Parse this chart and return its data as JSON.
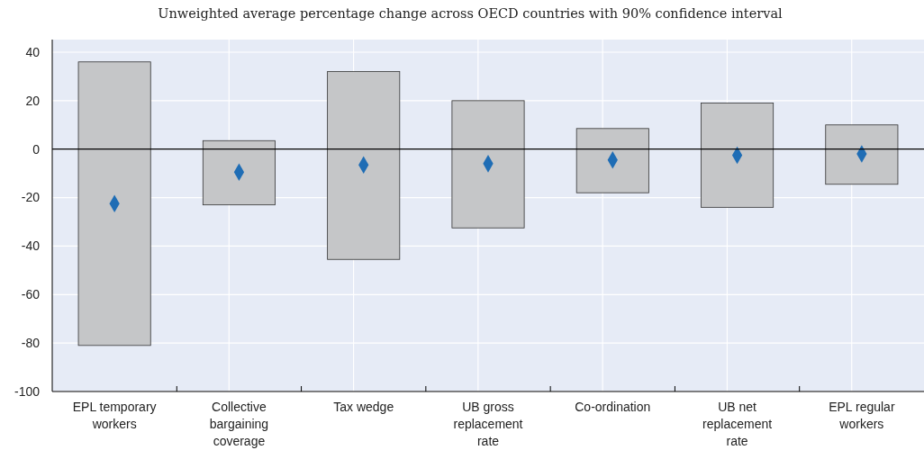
{
  "chart_data": {
    "type": "bar",
    "title": "Unweighted average percentage change across OECD countries with 90% confidence interval",
    "categories": [
      "EPL temporary workers",
      "Collective bargaining coverage",
      "Tax wedge",
      "UB gross replacement rate",
      "Co-ordination",
      "UB net replacement rate",
      "EPL regular workers"
    ],
    "series": [
      {
        "type": "bar",
        "color": "#c5c6c8",
        "base": [
          -81,
          -23,
          -45.5,
          -32.5,
          -18,
          -24,
          -14.5
        ],
        "values": [
          117,
          26.5,
          77.5,
          52.5,
          26.5,
          43,
          24.5
        ]
      },
      {
        "type": "scatter",
        "color": "#1f6db5",
        "marker": "diamond",
        "x": [
          "EPL temporary workers",
          "Collective bargaining coverage",
          "Tax wedge",
          "UB gross replacement rate",
          "Co-ordination",
          "UB net replacement rate",
          "EPL regular workers"
        ],
        "values": [
          -22.5,
          -9.5,
          -6.5,
          -6,
          -4.5,
          -2.5,
          -2
        ]
      }
    ],
    "ylim": [
      -100,
      40
    ],
    "yticks": [
      -100,
      -80,
      -60,
      -40,
      -20,
      0,
      20,
      40
    ],
    "grid": true,
    "ref_lines": [
      {
        "axis": "y",
        "value": 0,
        "color": "#000000"
      }
    ]
  }
}
